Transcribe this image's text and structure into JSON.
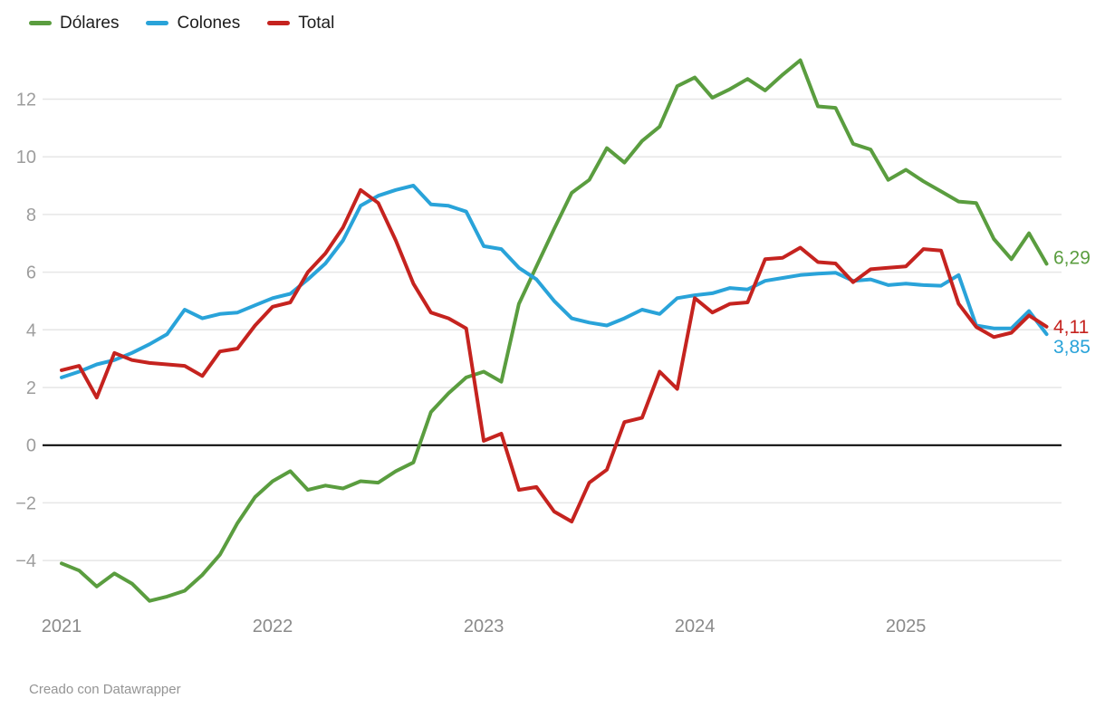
{
  "footer": "Creado con Datawrapper",
  "chart_data": {
    "type": "line",
    "title": "",
    "xlabel": "",
    "ylabel": "",
    "grid": true,
    "legend_position": "top-left",
    "ylim": [
      -5.8,
      13.8
    ],
    "yticks": [
      -4,
      -2,
      0,
      2,
      4,
      6,
      8,
      10,
      12
    ],
    "x_year_ticks": [
      "2021",
      "2022",
      "2023",
      "2024",
      "2025"
    ],
    "x": [
      "2021-01",
      "2021-02",
      "2021-03",
      "2021-04",
      "2021-05",
      "2021-06",
      "2021-07",
      "2021-08",
      "2021-09",
      "2021-10",
      "2021-11",
      "2021-12",
      "2022-01",
      "2022-02",
      "2022-03",
      "2022-04",
      "2022-05",
      "2022-06",
      "2022-07",
      "2022-08",
      "2022-09",
      "2022-10",
      "2022-11",
      "2022-12",
      "2023-01",
      "2023-02",
      "2023-03",
      "2023-04",
      "2023-05",
      "2023-06",
      "2023-07",
      "2023-08",
      "2023-09",
      "2023-10",
      "2023-11",
      "2023-12",
      "2024-01",
      "2024-02",
      "2024-03",
      "2024-04",
      "2024-05",
      "2024-06",
      "2024-07",
      "2024-08",
      "2024-09",
      "2024-10",
      "2024-11",
      "2024-12",
      "2025-01",
      "2025-02",
      "2025-03",
      "2025-04",
      "2025-05",
      "2025-06",
      "2025-07",
      "2025-08",
      "2025-09"
    ],
    "series": [
      {
        "name": "Dólares",
        "color": "#5a9d3f",
        "end_label": "6,29",
        "values": [
          -4.1,
          -4.35,
          -4.9,
          -4.45,
          -4.8,
          -5.4,
          -5.25,
          -5.05,
          -4.5,
          -3.8,
          -2.7,
          -1.8,
          -1.25,
          -0.9,
          -1.55,
          -1.4,
          -1.5,
          -1.25,
          -1.3,
          -0.9,
          -0.6,
          1.15,
          1.8,
          2.35,
          2.55,
          2.2,
          4.9,
          6.2,
          7.5,
          8.75,
          9.2,
          10.3,
          9.8,
          10.55,
          11.05,
          12.45,
          12.75,
          12.05,
          12.35,
          12.7,
          12.3,
          12.85,
          13.35,
          11.75,
          11.7,
          10.45,
          10.25,
          9.2,
          9.55,
          9.15,
          8.8,
          8.45,
          8.4,
          7.15,
          6.45,
          7.35,
          6.29
        ]
      },
      {
        "name": "Colones",
        "color": "#29a3d9",
        "end_label": "3,85",
        "values": [
          2.35,
          2.55,
          2.8,
          2.95,
          3.2,
          3.5,
          3.85,
          4.7,
          4.4,
          4.55,
          4.6,
          4.85,
          5.1,
          5.25,
          5.75,
          6.3,
          7.1,
          8.3,
          8.65,
          8.85,
          9.0,
          8.35,
          8.3,
          8.1,
          6.9,
          6.8,
          6.15,
          5.75,
          5.0,
          4.4,
          4.25,
          4.15,
          4.4,
          4.7,
          4.55,
          5.1,
          5.2,
          5.27,
          5.45,
          5.4,
          5.7,
          5.8,
          5.9,
          5.95,
          5.98,
          5.7,
          5.75,
          5.55,
          5.6,
          5.55,
          5.53,
          5.9,
          4.15,
          4.05,
          4.05,
          4.65,
          3.85
        ]
      },
      {
        "name": "Total",
        "color": "#c5231f",
        "end_label": "4,11",
        "values": [
          2.6,
          2.75,
          1.65,
          3.2,
          2.95,
          2.85,
          2.8,
          2.75,
          2.4,
          3.25,
          3.35,
          4.15,
          4.8,
          4.95,
          6.0,
          6.65,
          7.55,
          8.85,
          8.4,
          7.1,
          5.6,
          4.6,
          4.4,
          4.05,
          0.15,
          0.4,
          -1.55,
          -1.45,
          -2.3,
          -2.65,
          -1.3,
          -0.85,
          0.8,
          0.95,
          2.55,
          1.95,
          5.1,
          4.6,
          4.9,
          4.95,
          6.45,
          6.5,
          6.85,
          6.35,
          6.3,
          5.65,
          6.1,
          6.15,
          6.2,
          6.8,
          6.75,
          4.9,
          4.1,
          3.75,
          3.9,
          4.5,
          4.11
        ]
      }
    ],
    "colors": {
      "grid": "#e6e6e6",
      "zero_line": "#000000",
      "y_tick_text": "#9d9d9d",
      "x_tick_text": "#8a8a8a"
    }
  },
  "legend": {
    "items": [
      {
        "label": "Dólares"
      },
      {
        "label": "Colones"
      },
      {
        "label": "Total"
      }
    ]
  }
}
